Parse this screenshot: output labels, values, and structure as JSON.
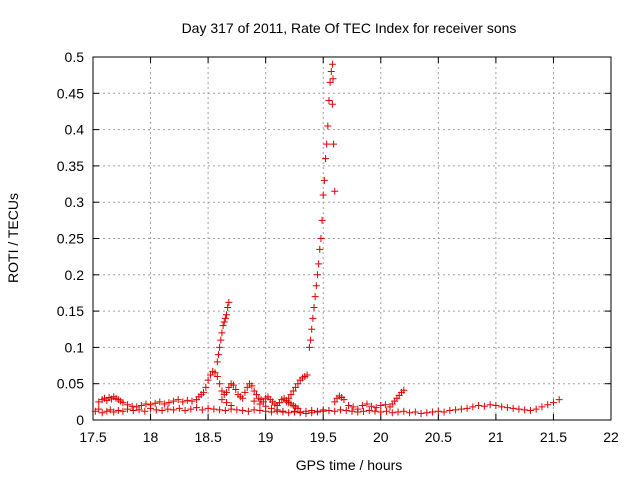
{
  "chart_data": {
    "type": "scatter",
    "title": "Day 317 of 2011, Rate Of TEC Index for receiver sons",
    "xlabel": "GPS time / hours",
    "ylabel": "ROTI / TECUs",
    "xlim": [
      17.5,
      22
    ],
    "ylim": [
      0,
      0.5
    ],
    "xticks": [
      "17.5",
      "18",
      "18.5",
      "19",
      "19.5",
      "20",
      "20.5",
      "21",
      "21.5",
      "22"
    ],
    "yticks": [
      "0",
      "0.05",
      "0.1",
      "0.15",
      "0.2",
      "0.25",
      "0.3",
      "0.35",
      "0.4",
      "0.45",
      "0.5"
    ],
    "grid": true,
    "marker": "plus",
    "color": "#e00000",
    "series": [
      {
        "x": [
          17.52,
          17.55,
          17.58,
          17.62,
          17.65,
          17.68,
          17.72,
          17.76,
          17.8,
          17.85,
          17.9,
          17.95,
          18.0,
          18.05,
          18.1,
          18.15,
          18.2,
          18.25,
          18.3,
          18.35,
          18.4,
          18.45,
          18.5,
          18.55,
          18.6,
          18.65,
          18.7,
          18.75,
          18.8,
          18.85,
          18.9,
          18.95,
          19.0,
          19.05,
          19.1,
          19.15,
          19.2,
          19.25,
          19.3,
          19.35,
          19.4,
          19.45,
          19.5,
          19.55,
          19.6,
          19.65,
          19.7,
          19.75,
          19.8,
          19.85,
          19.9,
          19.95,
          20.0,
          20.05,
          20.1,
          20.15,
          20.2,
          20.25,
          20.3,
          20.35,
          20.4,
          20.45,
          20.5,
          20.55,
          20.6,
          20.65,
          20.7,
          20.75,
          20.8,
          20.85,
          20.9,
          20.95,
          21.0,
          21.05,
          21.1,
          21.15,
          21.2,
          21.25,
          21.3,
          21.35,
          21.4,
          21.45,
          21.5,
          21.55
        ],
        "y": [
          0.012,
          0.015,
          0.01,
          0.012,
          0.014,
          0.011,
          0.013,
          0.012,
          0.015,
          0.013,
          0.014,
          0.012,
          0.016,
          0.014,
          0.013,
          0.015,
          0.014,
          0.016,
          0.013,
          0.015,
          0.017,
          0.014,
          0.016,
          0.015,
          0.014,
          0.013,
          0.015,
          0.014,
          0.013,
          0.012,
          0.014,
          0.013,
          0.012,
          0.011,
          0.012,
          0.011,
          0.01,
          0.012,
          0.011,
          0.012,
          0.013,
          0.012,
          0.014,
          0.013,
          0.012,
          0.014,
          0.013,
          0.012,
          0.011,
          0.012,
          0.013,
          0.012,
          0.011,
          0.012,
          0.01,
          0.011,
          0.012,
          0.01,
          0.011,
          0.009,
          0.01,
          0.011,
          0.012,
          0.011,
          0.013,
          0.014,
          0.015,
          0.016,
          0.018,
          0.02,
          0.019,
          0.021,
          0.02,
          0.018,
          0.017,
          0.016,
          0.015,
          0.014,
          0.013,
          0.015,
          0.018,
          0.021,
          0.024,
          0.028
        ]
      },
      {
        "x": [
          17.55,
          17.58,
          17.6,
          17.62,
          17.64,
          17.66,
          17.68,
          17.7,
          17.72,
          17.74,
          17.76,
          17.8,
          17.84,
          17.88,
          17.92,
          17.96,
          18.0,
          18.04,
          18.08,
          18.12,
          18.16,
          18.2,
          18.24,
          18.28,
          18.32,
          18.36,
          18.4,
          18.42,
          18.44,
          18.46,
          18.48,
          18.5,
          18.52,
          18.54,
          18.56,
          18.58,
          18.6,
          18.62,
          18.64,
          18.66,
          18.68,
          18.7,
          18.72,
          18.74,
          18.76,
          18.78,
          18.8,
          18.82,
          18.84,
          18.86,
          18.88,
          18.9,
          18.92,
          18.94,
          18.96,
          18.98,
          19.0,
          19.02,
          19.04,
          19.06,
          19.08,
          19.1,
          19.12,
          19.14,
          19.16,
          19.18,
          19.2,
          19.22,
          19.24,
          19.26,
          19.28
        ],
        "y": [
          0.025,
          0.028,
          0.03,
          0.027,
          0.031,
          0.029,
          0.032,
          0.03,
          0.028,
          0.026,
          0.024,
          0.021,
          0.019,
          0.018,
          0.02,
          0.022,
          0.021,
          0.023,
          0.025,
          0.022,
          0.024,
          0.026,
          0.028,
          0.025,
          0.027,
          0.026,
          0.028,
          0.032,
          0.035,
          0.038,
          0.045,
          0.055,
          0.062,
          0.067,
          0.065,
          0.06,
          0.05,
          0.04,
          0.035,
          0.038,
          0.045,
          0.05,
          0.048,
          0.042,
          0.035,
          0.032,
          0.03,
          0.038,
          0.045,
          0.05,
          0.047,
          0.04,
          0.035,
          0.03,
          0.028,
          0.025,
          0.03,
          0.032,
          0.028,
          0.025,
          0.022,
          0.02,
          0.024,
          0.028,
          0.03,
          0.027,
          0.024,
          0.022,
          0.02,
          0.018,
          0.016
        ]
      },
      {
        "x": [
          19.18,
          19.2,
          19.22,
          19.24,
          19.26,
          19.28,
          19.3,
          19.32,
          19.34,
          19.36,
          19.6,
          19.62,
          19.64,
          19.66,
          19.68,
          19.72,
          19.76,
          19.8,
          19.84,
          19.88,
          19.92,
          19.96,
          20.0,
          20.04,
          20.08,
          20.1,
          20.12,
          20.14,
          20.16,
          20.18,
          20.2
        ],
        "y": [
          0.025,
          0.03,
          0.035,
          0.04,
          0.045,
          0.05,
          0.055,
          0.058,
          0.06,
          0.062,
          0.025,
          0.03,
          0.033,
          0.031,
          0.028,
          0.02,
          0.018,
          0.015,
          0.02,
          0.022,
          0.019,
          0.017,
          0.02,
          0.021,
          0.018,
          0.022,
          0.026,
          0.03,
          0.034,
          0.038,
          0.041
        ]
      },
      {
        "x": [
          18.58,
          18.59,
          18.6,
          18.61,
          18.62,
          18.63,
          18.64,
          18.65,
          18.66,
          18.67,
          18.68
        ],
        "y": [
          0.08,
          0.09,
          0.1,
          0.11,
          0.12,
          0.13,
          0.135,
          0.14,
          0.145,
          0.155,
          0.162
        ]
      },
      {
        "x": [
          19.38,
          19.39,
          19.4,
          19.41,
          19.42,
          19.43,
          19.44,
          19.45,
          19.46,
          19.47,
          19.48,
          19.49,
          19.5,
          19.51,
          19.52,
          19.53,
          19.54,
          19.55,
          19.56,
          19.57,
          19.58,
          19.585
        ],
        "y": [
          0.1,
          0.11,
          0.125,
          0.14,
          0.155,
          0.17,
          0.185,
          0.2,
          0.215,
          0.235,
          0.25,
          0.275,
          0.31,
          0.33,
          0.36,
          0.38,
          0.405,
          0.44,
          0.465,
          0.48,
          0.49,
          0.47
        ]
      },
      {
        "x": [
          19.58,
          19.59,
          19.6
        ],
        "y": [
          0.435,
          0.38,
          0.315
        ]
      },
      {
        "x": [
          18.62,
          18.66,
          18.7,
          18.9,
          18.95,
          19.0,
          19.05,
          19.1,
          19.15,
          19.25,
          19.3,
          19.35,
          19.4,
          19.45,
          19.5,
          19.55
        ],
        "y": [
          0.028,
          0.024,
          0.02,
          0.026,
          0.022,
          0.019,
          0.016,
          0.014,
          0.012,
          0.011,
          0.01,
          0.009,
          0.01,
          0.011,
          0.012,
          0.013
        ]
      }
    ]
  }
}
